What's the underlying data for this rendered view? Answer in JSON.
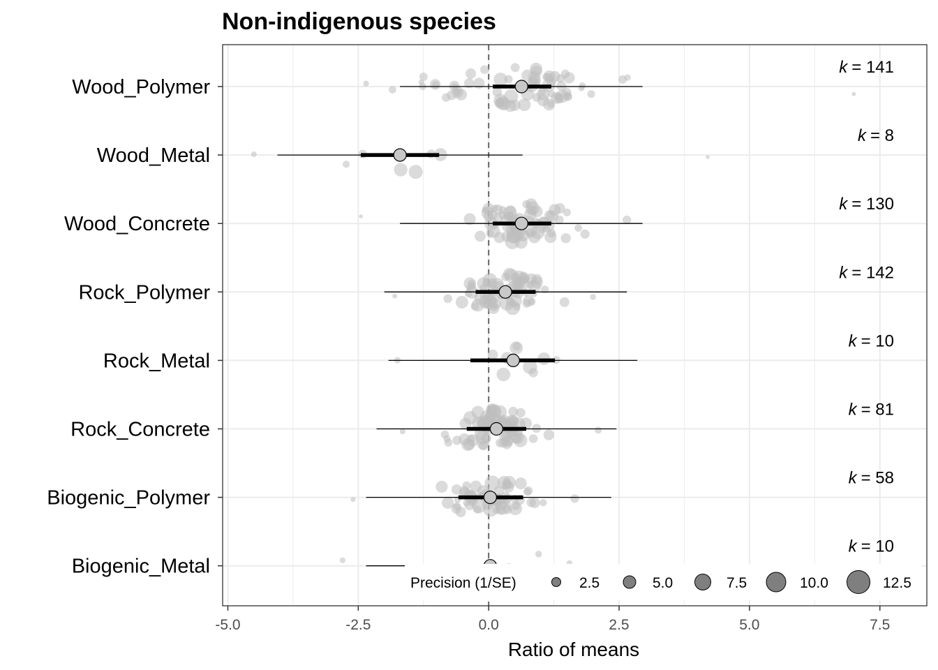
{
  "chart_data": {
    "type": "scatter",
    "title": "Non-indigenous species",
    "xlabel": "Ratio of means",
    "ylabel": "",
    "xlim": [
      -5.1,
      8.4
    ],
    "x_ticks": [
      -5.0,
      -2.5,
      0.0,
      2.5,
      5.0,
      7.5
    ],
    "x_tick_labels": [
      "-5.0",
      "-2.5",
      "0.0",
      "2.5",
      "5.0",
      "7.5"
    ],
    "reference_line": 0,
    "grid": true,
    "k_prefix": "k",
    "k_equals": "= ",
    "legend": {
      "title": "Precision (1/SE)",
      "placement": "bottom-right",
      "entries": [
        {
          "label": "2.5",
          "value": 2.5
        },
        {
          "label": "5.0",
          "value": 5.0
        },
        {
          "label": "7.5",
          "value": 7.5
        },
        {
          "label": "10.0",
          "value": 10.0
        },
        {
          "label": "12.5",
          "value": 12.5
        }
      ]
    },
    "categories": [
      {
        "name": "Wood_Polymer",
        "k": 141,
        "estimate": 0.63,
        "ci_low": 0.08,
        "ci_high": 1.2,
        "pi_low": -1.7,
        "pi_high": 2.95,
        "x_min": -2.35,
        "x_max": 7.0,
        "spread": 2.8
      },
      {
        "name": "Wood_Metal",
        "k": 8,
        "estimate": -1.7,
        "ci_low": -2.45,
        "ci_high": -0.95,
        "pi_low": -4.05,
        "pi_high": 0.65,
        "x_min": -4.5,
        "x_max": 4.2,
        "spread": 2.6
      },
      {
        "name": "Wood_Concrete",
        "k": 130,
        "estimate": 0.63,
        "ci_low": 0.08,
        "ci_high": 1.2,
        "pi_low": -1.7,
        "pi_high": 2.95,
        "x_min": -2.45,
        "x_max": 2.65,
        "spread": 2.7
      },
      {
        "name": "Rock_Polymer",
        "k": 142,
        "estimate": 0.32,
        "ci_low": -0.25,
        "ci_high": 0.9,
        "pi_low": -2.0,
        "pi_high": 2.65,
        "x_min": -1.8,
        "x_max": 2.0,
        "spread": 2.4
      },
      {
        "name": "Rock_Metal",
        "k": 10,
        "estimate": 0.47,
        "ci_low": -0.35,
        "ci_high": 1.27,
        "pi_low": -1.92,
        "pi_high": 2.85,
        "x_min": -1.75,
        "x_max": 1.3,
        "spread": 2.0
      },
      {
        "name": "Rock_Concrete",
        "k": 81,
        "estimate": 0.15,
        "ci_low": -0.42,
        "ci_high": 0.72,
        "pi_low": -2.15,
        "pi_high": 2.45,
        "x_min": -1.65,
        "x_max": 2.1,
        "spread": 2.6
      },
      {
        "name": "Biogenic_Polymer",
        "k": 58,
        "estimate": 0.03,
        "ci_low": -0.58,
        "ci_high": 0.66,
        "pi_low": -2.35,
        "pi_high": 2.35,
        "x_min": -2.6,
        "x_max": 1.65,
        "spread": 2.3
      },
      {
        "name": "Biogenic_Metal",
        "k": 10,
        "estimate": 0.03,
        "ci_low": -0.75,
        "ci_high": 0.8,
        "pi_low": -2.35,
        "pi_high": 2.35,
        "x_min": -2.8,
        "x_max": 1.55,
        "spread": 2.1
      }
    ],
    "colors": {
      "points": "#bdbdbd",
      "estimate_fill": "#c8c8c8",
      "estimate_stroke": "#000000",
      "ci": "#000000",
      "pi": "#000000",
      "grid": "#ebebeb",
      "legend_key": "#7f7f7f",
      "reference": "#666666"
    }
  }
}
